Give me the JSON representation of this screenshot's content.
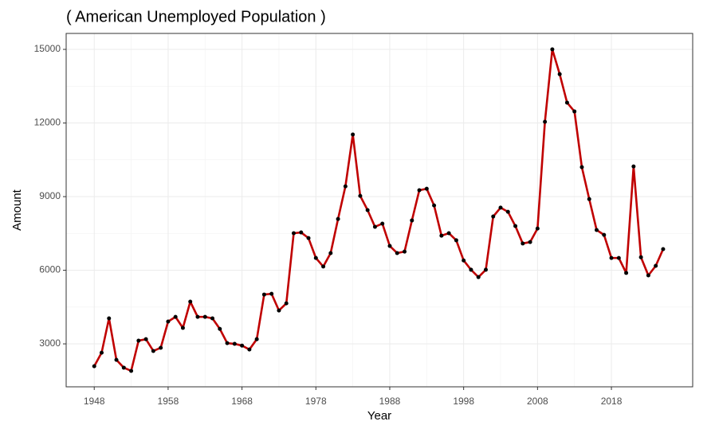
{
  "chart_data": {
    "type": "line",
    "title": "( American Unemployed Population )",
    "x_label": "Year",
    "y_label": "Amount",
    "x": [
      1948,
      1949,
      1950,
      1951,
      1952,
      1953,
      1954,
      1955,
      1956,
      1957,
      1958,
      1959,
      1960,
      1961,
      1962,
      1963,
      1964,
      1965,
      1966,
      1967,
      1968,
      1969,
      1970,
      1971,
      1972,
      1973,
      1974,
      1975,
      1976,
      1977,
      1978,
      1979,
      1980,
      1981,
      1982,
      1983,
      1984,
      1985,
      1986,
      1987,
      1988,
      1989,
      1990,
      1991,
      1992,
      1993,
      1994,
      1995,
      1996,
      1997,
      1998,
      1999,
      2000,
      2001,
      2002,
      2003,
      2004,
      2005,
      2006,
      2007,
      2008,
      2009,
      2010,
      2011,
      2012,
      2013,
      2014,
      2015,
      2016,
      2017,
      2018,
      2019,
      2020,
      2021,
      2022,
      2023,
      2024,
      2025
    ],
    "series": [
      {
        "name": "Amount",
        "color": "#c00000",
        "point_color": "#000000",
        "values": [
          2090,
          2640,
          4040,
          2350,
          2030,
          1900,
          3130,
          3190,
          2710,
          2840,
          3910,
          4100,
          3650,
          4720,
          4100,
          4100,
          4040,
          3610,
          3030,
          3000,
          2930,
          2770,
          3190,
          5010,
          5040,
          4360,
          4650,
          7510,
          7540,
          7310,
          6500,
          6150,
          6700,
          8090,
          9420,
          11530,
          9030,
          8450,
          7770,
          7900,
          6990,
          6700,
          6760,
          8030,
          9260,
          9320,
          8640,
          7410,
          7510,
          7220,
          6400,
          6020,
          5720,
          6020,
          8190,
          8550,
          8380,
          7800,
          7090,
          7150,
          7700,
          12050,
          15000,
          13990,
          12830,
          12470,
          10200,
          8900,
          7640,
          7440,
          6500,
          6500,
          5890,
          10230,
          6530,
          5790,
          6180,
          6860
        ]
      }
    ],
    "xlim": [
      1944.2,
      2029
    ],
    "ylim": [
      1250,
      15650
    ],
    "xticks": [
      1948,
      1958,
      1968,
      1978,
      1988,
      1998,
      2008,
      2018
    ],
    "yticks": [
      3000,
      6000,
      9000,
      12000,
      15000
    ],
    "grid": true
  }
}
